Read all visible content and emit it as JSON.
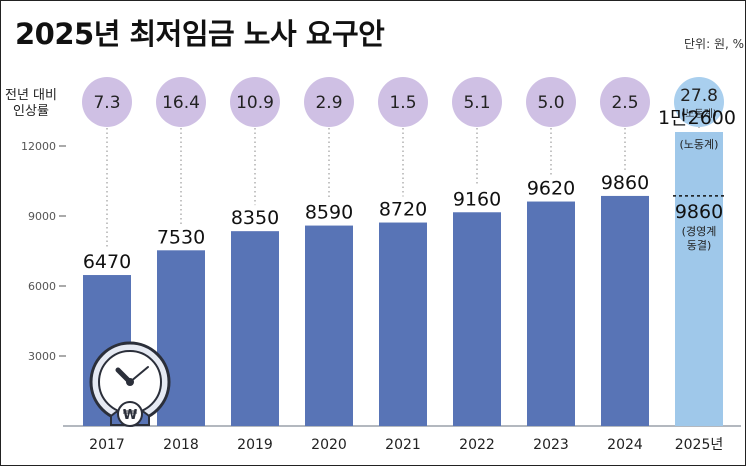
{
  "title": "2025년 최저임금 노사 요구안",
  "unit": "단위: 원, %",
  "row_label_line1": "전년 대비",
  "row_label_line2": "인상률",
  "colors": {
    "bar": "#5874b6",
    "bar_2025": "#9fc8ea",
    "circle": "#cfc0e4",
    "circle_2025": "#a9cfee",
    "axis": "#9aa0aa"
  },
  "chart_data": {
    "type": "bar",
    "categories": [
      "2017",
      "2018",
      "2019",
      "2020",
      "2021",
      "2022",
      "2023",
      "2024",
      "2025년"
    ],
    "values": [
      6470,
      7530,
      8350,
      8590,
      8720,
      9160,
      9620,
      9860,
      null
    ],
    "value_labels": [
      "6470",
      "7530",
      "8350",
      "8590",
      "8720",
      "9160",
      "9620",
      "9860",
      ""
    ],
    "increase_rates": [
      "7.3",
      "16.4",
      "10.9",
      "2.9",
      "1.5",
      "5.1",
      "5.0",
      "2.5",
      "27.8"
    ],
    "increase_rate_note_2025": "(노동계)",
    "proposals_2025": {
      "labor": {
        "value": 12600,
        "label": "1만2600",
        "note": "(노동계)"
      },
      "management": {
        "value": 9860,
        "label": "9860",
        "note_line1": "(경영계",
        "note_line2": "동결)"
      }
    },
    "yticks": [
      3000,
      6000,
      9000,
      12000
    ],
    "ytick_labels": [
      "3000",
      "6000",
      "9000",
      "12000"
    ],
    "ylim": [
      0,
      13500
    ],
    "grid": false,
    "icon": "minimum-wage-clock-icon"
  }
}
